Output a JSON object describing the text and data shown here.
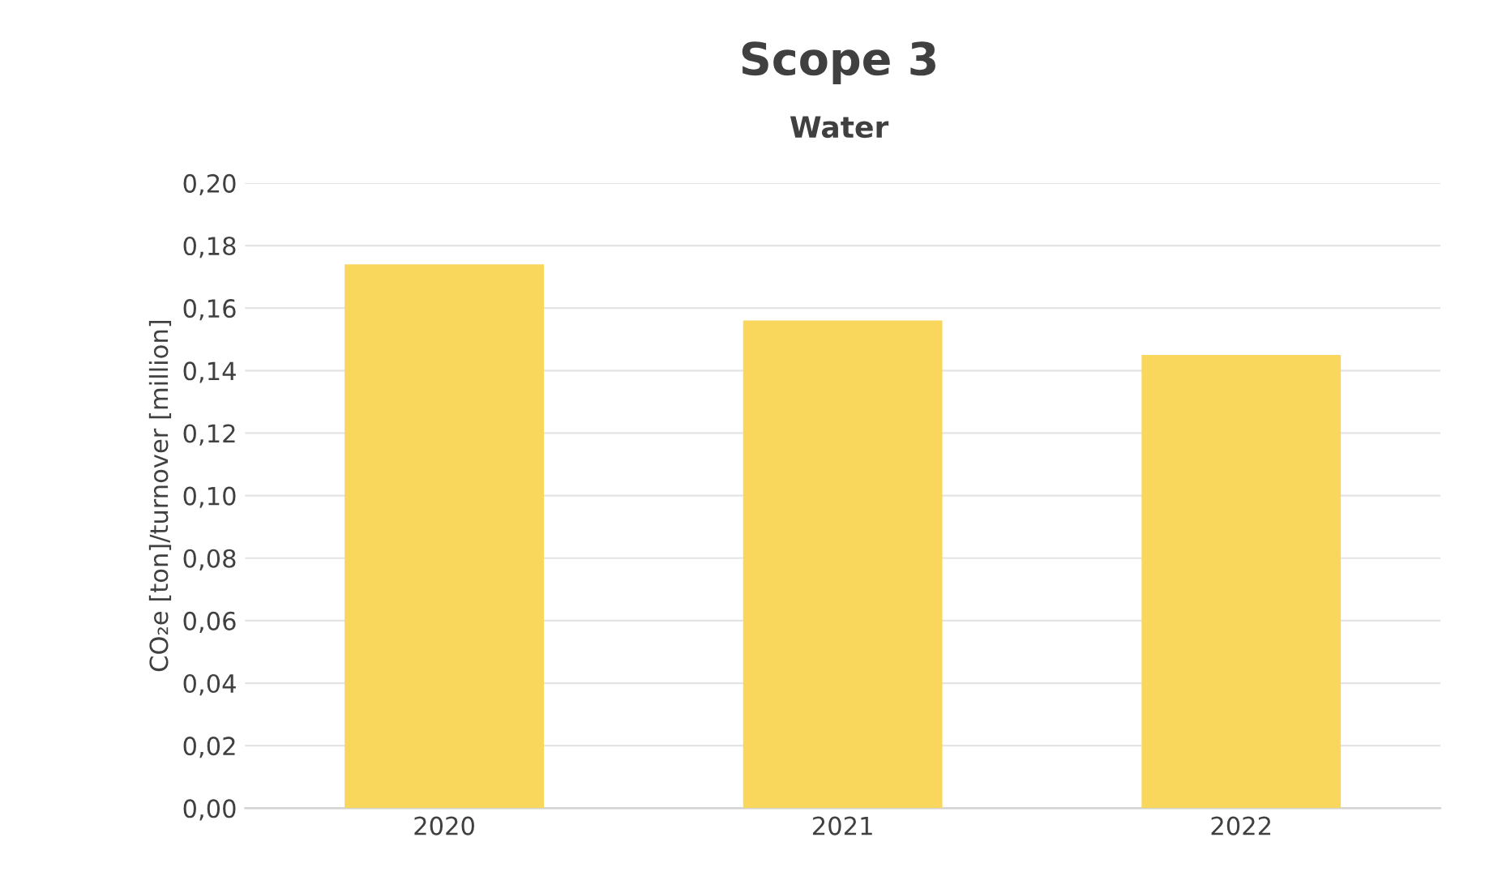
{
  "chart_data": {
    "type": "bar",
    "title": "Scope 3",
    "subtitle": "Water",
    "ylabel": "CO₂e [ton]/turnover [million]",
    "categories": [
      "2020",
      "2021",
      "2022"
    ],
    "values": [
      0.174,
      0.156,
      0.145
    ],
    "color": "#f8d75c",
    "ylim": [
      0,
      0.2
    ],
    "yticks": [
      {
        "value": 0,
        "label": "0,00"
      },
      {
        "value": 0.02,
        "label": "0,02"
      },
      {
        "value": 0.04,
        "label": "0,04"
      },
      {
        "value": 0.06,
        "label": "0,06"
      },
      {
        "value": 0.08,
        "label": "0,08"
      },
      {
        "value": 0.1,
        "label": "0,10"
      },
      {
        "value": 0.12,
        "label": "0,12"
      },
      {
        "value": 0.14,
        "label": "0,14"
      },
      {
        "value": 0.16,
        "label": "0,16"
      },
      {
        "value": 0.18,
        "label": "0,18"
      },
      {
        "value": 0.2,
        "label": "0,20"
      }
    ],
    "grid": "y"
  }
}
